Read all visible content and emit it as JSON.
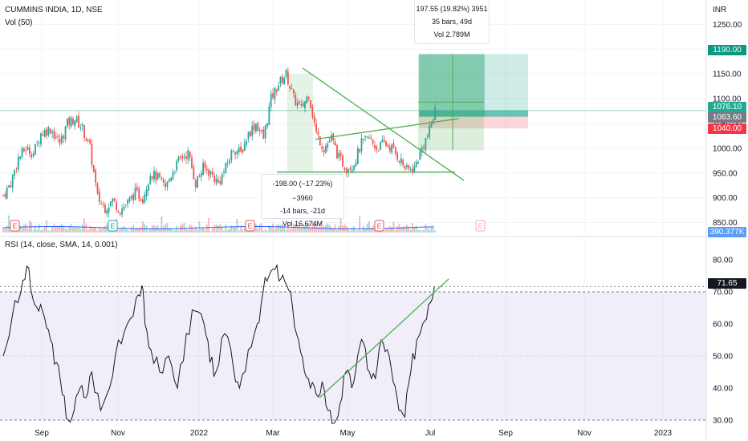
{
  "header": {
    "symbol": "CUMMINS INDIA, 1D, NSE",
    "volume_label": "Vol (50)",
    "currency": "INR"
  },
  "rsi_panel": {
    "label": "RSI (14, close, SMA, 14, 0.001)"
  },
  "price_tags": {
    "target": "1190.00",
    "last": "1076.10",
    "entry": "1063.60",
    "stop": "1040.00",
    "volume": "390.377K",
    "rsi": "71.65"
  },
  "measure_box": {
    "line1": "-198.00 (−17.23%) −3960",
    "line2": "-14 bars, -21d",
    "line3": "Vol 16.674M"
  },
  "position_box": {
    "line1": "197.55 (19.82%) 3951",
    "line2": "35 bars, 49d",
    "line3": "Vol 2.789M"
  },
  "earnings_marker": "E",
  "colors": {
    "up": "#26a69a",
    "down": "#ef5350",
    "rsi_band": "#7e57c2",
    "trendline": "#4caf50",
    "volume": "#2962ff"
  },
  "chart_data": [
    {
      "type": "candlestick",
      "title": "CUMMINS INDIA, 1D, NSE",
      "yticks": [
        850,
        900,
        950,
        1000,
        1050,
        1100,
        1150,
        1200,
        1250
      ],
      "ylim": [
        830,
        1270
      ],
      "xticks": [
        "Sep",
        "Nov",
        "2022",
        "Mar",
        "May",
        "Jul",
        "Sep",
        "Nov",
        "2023"
      ],
      "close_path": [
        [
          0,
          905
        ],
        [
          4,
          930
        ],
        [
          8,
          980
        ],
        [
          12,
          1000
        ],
        [
          16,
          990
        ],
        [
          20,
          1030
        ],
        [
          25,
          1040
        ],
        [
          30,
          1010
        ],
        [
          34,
          1050
        ],
        [
          38,
          1060
        ],
        [
          42,
          1040
        ],
        [
          46,
          1000
        ],
        [
          50,
          900
        ],
        [
          54,
          880
        ],
        [
          58,
          895
        ],
        [
          62,
          875
        ],
        [
          66,
          890
        ],
        [
          70,
          910
        ],
        [
          74,
          900
        ],
        [
          78,
          950
        ],
        [
          82,
          940
        ],
        [
          86,
          920
        ],
        [
          90,
          955
        ],
        [
          94,
          980
        ],
        [
          98,
          990
        ],
        [
          102,
          930
        ],
        [
          106,
          960
        ],
        [
          110,
          950
        ],
        [
          114,
          930
        ],
        [
          118,
          960
        ],
        [
          122,
          1000
        ],
        [
          126,
          990
        ],
        [
          130,
          1030
        ],
        [
          134,
          1050
        ],
        [
          138,
          1020
        ],
        [
          142,
          1100
        ],
        [
          146,
          1130
        ],
        [
          150,
          1150
        ],
        [
          154,
          1100
        ],
        [
          158,
          1080
        ],
        [
          162,
          1110
        ],
        [
          166,
          1030
        ],
        [
          170,
          1000
        ],
        [
          174,
          1020
        ],
        [
          178,
          980
        ],
        [
          182,
          960
        ],
        [
          186,
          970
        ],
        [
          190,
          1010
        ],
        [
          194,
          1020
        ],
        [
          198,
          1000
        ],
        [
          202,
          1010
        ],
        [
          206,
          1000
        ],
        [
          210,
          980
        ],
        [
          214,
          955
        ],
        [
          218,
          960
        ],
        [
          222,
          1000
        ],
        [
          226,
          1035
        ],
        [
          229,
          1076
        ]
      ],
      "volume_current": "390.377K",
      "trade_levels": {
        "target": 1190.0,
        "entry": 1063.6,
        "stop": 1040.0,
        "last": 1076.1
      },
      "annotations": [
        "-198.00 (−17.23%) −3960",
        "-14 bars, -21d",
        "Vol 16.674M",
        "197.55 (19.82%) 3951",
        "35 bars, 49d",
        "Vol 2.789M"
      ]
    },
    {
      "type": "line",
      "title": "RSI (14, close, SMA, 14, 0.001)",
      "yticks": [
        30,
        40,
        50,
        60,
        70,
        80
      ],
      "ylim": [
        26,
        86
      ],
      "band": [
        30,
        70
      ],
      "last_value": 71.65,
      "rsi_path": [
        [
          0,
          50
        ],
        [
          3,
          62
        ],
        [
          6,
          70
        ],
        [
          8,
          78
        ],
        [
          10,
          68
        ],
        [
          12,
          64
        ],
        [
          14,
          62
        ],
        [
          16,
          55
        ],
        [
          18,
          48
        ],
        [
          20,
          38
        ],
        [
          22,
          30
        ],
        [
          24,
          33
        ],
        [
          26,
          40
        ],
        [
          28,
          37
        ],
        [
          30,
          45
        ],
        [
          33,
          33
        ],
        [
          36,
          40
        ],
        [
          39,
          55
        ],
        [
          42,
          60
        ],
        [
          45,
          68
        ],
        [
          47,
          72
        ],
        [
          48,
          60
        ],
        [
          50,
          52
        ],
        [
          53,
          45
        ],
        [
          56,
          50
        ],
        [
          59,
          40
        ],
        [
          62,
          57
        ],
        [
          65,
          64
        ],
        [
          68,
          60
        ],
        [
          70,
          48
        ],
        [
          72,
          45
        ],
        [
          75,
          57
        ],
        [
          78,
          46
        ],
        [
          80,
          40
        ],
        [
          83,
          52
        ],
        [
          86,
          60
        ],
        [
          88,
          70
        ],
        [
          90,
          75
        ],
        [
          92,
          77
        ],
        [
          94,
          74
        ],
        [
          96,
          72
        ],
        [
          98,
          65
        ],
        [
          100,
          55
        ],
        [
          102,
          45
        ],
        [
          104,
          40
        ],
        [
          106,
          38
        ],
        [
          108,
          42
        ],
        [
          110,
          33
        ],
        [
          112,
          29
        ],
        [
          114,
          35
        ],
        [
          116,
          45
        ],
        [
          118,
          40
        ],
        [
          120,
          50
        ],
        [
          122,
          54
        ],
        [
          124,
          45
        ],
        [
          126,
          43
        ],
        [
          128,
          55
        ],
        [
          130,
          52
        ],
        [
          132,
          42
        ],
        [
          134,
          33
        ],
        [
          136,
          31
        ],
        [
          138,
          45
        ],
        [
          140,
          55
        ],
        [
          142,
          60
        ],
        [
          144,
          66
        ],
        [
          146,
          71.65
        ]
      ]
    }
  ]
}
